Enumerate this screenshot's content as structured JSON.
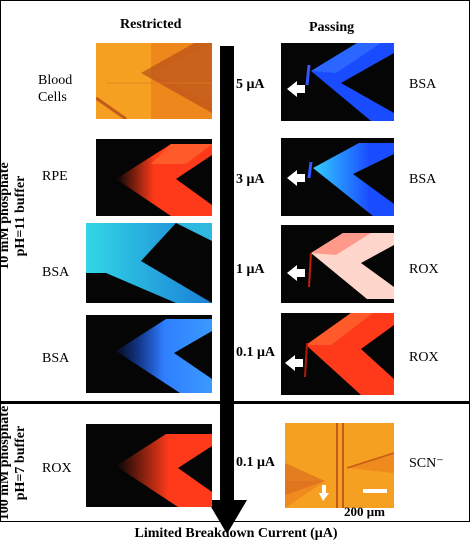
{
  "headers": {
    "left": "Restricted",
    "right": "Passing"
  },
  "side_labels": {
    "top": [
      "10 mM phosphate",
      "pH=11 buffer"
    ],
    "bottom": [
      "100 mM phosphate",
      "pH=7 buffer"
    ]
  },
  "rows": [
    {
      "left_label": [
        "Blood",
        "Cells"
      ],
      "current": "5 μA",
      "right_label": "BSA"
    },
    {
      "left_label": [
        "RPE"
      ],
      "current": "3 μA",
      "right_label": "BSA"
    },
    {
      "left_label": [
        "BSA"
      ],
      "current": "1 μA",
      "right_label": "ROX"
    },
    {
      "left_label": [
        "BSA"
      ],
      "current": "0.1 μA",
      "right_label": "ROX"
    },
    {
      "left_label": [
        "ROX"
      ],
      "current": "0.1 μA",
      "right_label": "SCN⁻"
    }
  ],
  "scale_bar": "200 μm",
  "footer": "Limited Breakdown Current (μA)",
  "colors": {
    "red_fluor": "#ff3a1a",
    "blue_fluor": "#1a4cff",
    "cyan_fluor": "#33d6e6",
    "light_blue_fluor": "#3a9aff",
    "pink_fluor": "#ffd6cc",
    "orange_bg": "#f5a020",
    "dark": "#050505"
  }
}
